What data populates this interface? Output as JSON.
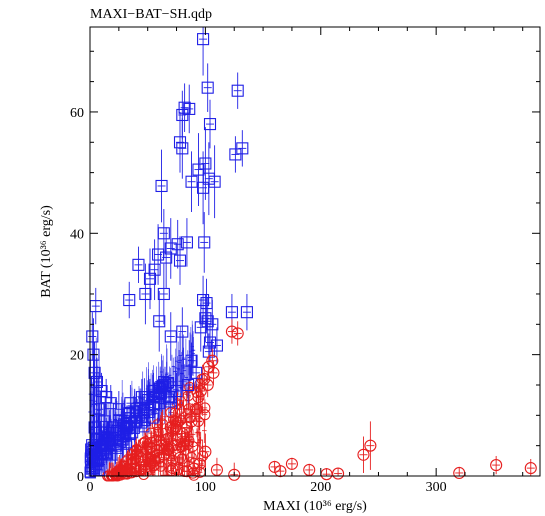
{
  "chart_data": {
    "type": "scatter",
    "title": "MAXI−BAT−SH.qdp",
    "xlabel": "MAXI (10³⁶ erg/s)",
    "ylabel": "BAT (10³⁶ erg/s)",
    "xlim": [
      0,
      390
    ],
    "ylim": [
      0,
      74
    ],
    "xticks": [
      0,
      100,
      200,
      300
    ],
    "yticks": [
      0,
      20,
      40,
      60
    ],
    "grid": false,
    "colors": {
      "blue": "#1f1fe6",
      "red": "#e61f1f"
    },
    "series": [
      {
        "marker": "square",
        "color": "#1f1fe6",
        "points": [
          [
            98,
            72,
            6
          ],
          [
            102,
            64,
            4
          ],
          [
            128,
            63.5,
            3
          ],
          [
            82,
            60.7,
            4
          ],
          [
            86,
            60.5,
            4
          ],
          [
            80,
            59.5,
            4
          ],
          [
            104,
            58,
            4
          ],
          [
            78,
            55,
            5
          ],
          [
            80,
            54,
            5
          ],
          [
            132,
            54,
            3
          ],
          [
            126,
            53,
            3
          ],
          [
            100,
            51.5,
            6
          ],
          [
            94,
            50.5,
            6
          ],
          [
            103,
            49,
            6
          ],
          [
            108,
            48.5,
            6
          ],
          [
            88,
            48.5,
            5
          ],
          [
            62,
            47.8,
            6
          ],
          [
            98,
            47.5,
            6
          ],
          [
            64,
            40,
            4
          ],
          [
            99,
            38.5,
            5
          ],
          [
            84,
            38.5,
            4
          ],
          [
            76,
            38.2,
            4
          ],
          [
            70,
            37.5,
            5
          ],
          [
            59,
            36.5,
            5
          ],
          [
            66,
            36,
            5
          ],
          [
            78,
            35.5,
            4
          ],
          [
            42,
            34.8,
            3
          ],
          [
            56,
            34,
            5
          ],
          [
            52,
            32.5,
            5
          ],
          [
            64,
            30,
            5
          ],
          [
            48,
            30,
            5
          ],
          [
            34,
            29,
            3
          ],
          [
            98,
            29,
            4
          ],
          [
            101,
            28.5,
            4
          ],
          [
            123,
            27,
            3
          ],
          [
            136,
            27,
            3
          ],
          [
            5,
            28,
            3
          ],
          [
            60,
            25.5,
            5
          ],
          [
            100,
            26,
            4
          ],
          [
            102,
            25.5,
            4
          ],
          [
            106,
            25,
            4
          ],
          [
            96,
            24.5,
            4
          ],
          [
            80,
            23.8,
            4
          ],
          [
            70,
            23,
            4
          ],
          [
            2,
            23,
            4
          ],
          [
            104,
            22,
            3
          ],
          [
            110,
            21.5,
            3
          ],
          [
            103,
            20.5,
            3
          ],
          [
            88,
            19,
            3
          ],
          [
            3,
            20,
            6
          ],
          [
            4,
            17,
            5
          ],
          [
            6,
            15.5,
            4
          ],
          [
            14,
            13,
            3
          ],
          [
            10,
            14,
            3
          ],
          [
            18,
            12,
            3
          ],
          [
            25,
            11,
            3
          ],
          [
            35,
            12,
            3
          ],
          [
            45,
            13,
            3
          ],
          [
            55,
            14,
            3
          ],
          [
            65,
            15,
            3
          ],
          [
            75,
            14,
            3
          ],
          [
            85,
            15,
            3
          ],
          [
            92,
            17,
            3
          ],
          [
            8,
            11,
            3
          ],
          [
            12,
            9,
            3
          ],
          [
            20,
            8,
            3
          ],
          [
            30,
            9,
            3
          ],
          [
            40,
            10,
            3
          ],
          [
            50,
            11,
            3
          ],
          [
            60,
            12,
            3
          ],
          [
            70,
            13,
            3
          ],
          [
            4,
            8,
            4
          ],
          [
            6,
            6,
            4
          ],
          [
            10,
            5,
            3
          ],
          [
            16,
            6,
            3
          ],
          [
            22,
            5,
            3
          ],
          [
            28,
            6,
            3
          ],
          [
            34,
            7,
            3
          ],
          [
            2,
            4,
            3
          ],
          [
            5,
            2,
            3
          ],
          [
            8,
            1,
            2
          ]
        ]
      },
      {
        "marker": "circle",
        "color": "#e61f1f",
        "points": [
          [
            123,
            23.8,
            2
          ],
          [
            128,
            23.5,
            2
          ],
          [
            107,
            17,
            2
          ],
          [
            103,
            18,
            2
          ],
          [
            99,
            16,
            2
          ],
          [
            96,
            14,
            2
          ],
          [
            92,
            11,
            2
          ],
          [
            88,
            9,
            2
          ],
          [
            84,
            8,
            2
          ],
          [
            80,
            7,
            2
          ],
          [
            76,
            6,
            2
          ],
          [
            72,
            5,
            2
          ],
          [
            68,
            4.5,
            2
          ],
          [
            64,
            3.5,
            2
          ],
          [
            60,
            3,
            2
          ],
          [
            56,
            2.5,
            2
          ],
          [
            52,
            2,
            2
          ],
          [
            48,
            1.5,
            2
          ],
          [
            44,
            1,
            2
          ],
          [
            40,
            0.8,
            2
          ],
          [
            36,
            0.6,
            2
          ],
          [
            32,
            0.4,
            2
          ],
          [
            100,
            4,
            3
          ],
          [
            95,
            2,
            2
          ],
          [
            90,
            1.2,
            2
          ],
          [
            84,
            0.8,
            2
          ],
          [
            78,
            3,
            2
          ],
          [
            110,
            1,
            2
          ],
          [
            125,
            0.2,
            2
          ],
          [
            160,
            1.5,
            1
          ],
          [
            165,
            0.8,
            1
          ],
          [
            175,
            2,
            1
          ],
          [
            190,
            1,
            1
          ],
          [
            205,
            0.3,
            1
          ],
          [
            215,
            0.4,
            1
          ],
          [
            237,
            3.5,
            3
          ],
          [
            243,
            5,
            4
          ],
          [
            320,
            0.5,
            1
          ],
          [
            352,
            1.8,
            1.5
          ],
          [
            382,
            1.3,
            1.5
          ],
          [
            66,
            6,
            2
          ],
          [
            62,
            5,
            2
          ],
          [
            58,
            4.2,
            2
          ],
          [
            54,
            3.6,
            2
          ],
          [
            70,
            8,
            2
          ],
          [
            74,
            9,
            2
          ],
          [
            86,
            11,
            2
          ],
          [
            94,
            13,
            2
          ],
          [
            102,
            15,
            2
          ],
          [
            106,
            19,
            2
          ]
        ]
      }
    ]
  }
}
